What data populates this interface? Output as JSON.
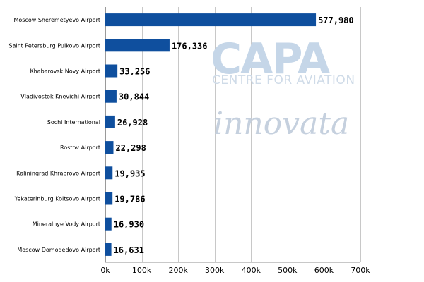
{
  "watermarks": {
    "capa": "CAPA",
    "centre": "CENTRE FOR AVIATION",
    "innovata": "innovata"
  },
  "chart_data": {
    "type": "bar",
    "orientation": "horizontal",
    "title": "",
    "xlabel": "",
    "ylabel": "",
    "xlim": [
      0,
      700000
    ],
    "grid": true,
    "bar_color": "#0f4f9e",
    "categories": [
      "Moscow Sheremetyevo Airport",
      "Saint Petersburg Pulkovo Airport",
      "Khabarovsk Novy Airport",
      "Vladivostok Knevichi Airport",
      "Sochi International",
      "Rostov Airport",
      "Kaliningrad Khrabrovo Airport",
      "Yekaterinburg Koltsovo Airport",
      "Mineralnye Vody Airport",
      "Moscow Domodedovo Airport"
    ],
    "values": [
      577980,
      176336,
      33256,
      30844,
      26928,
      22298,
      19935,
      19786,
      16930,
      16631
    ],
    "value_labels": [
      "577,980",
      "176,336",
      "33,256",
      "30,844",
      "26,928",
      "22,298",
      "19,935",
      "19,786",
      "16,930",
      "16,631"
    ],
    "ticks": [
      0,
      100000,
      200000,
      300000,
      400000,
      500000,
      600000,
      700000
    ],
    "tick_labels": [
      "0k",
      "100k",
      "200k",
      "300k",
      "400k",
      "500k",
      "600k",
      "700k"
    ]
  }
}
